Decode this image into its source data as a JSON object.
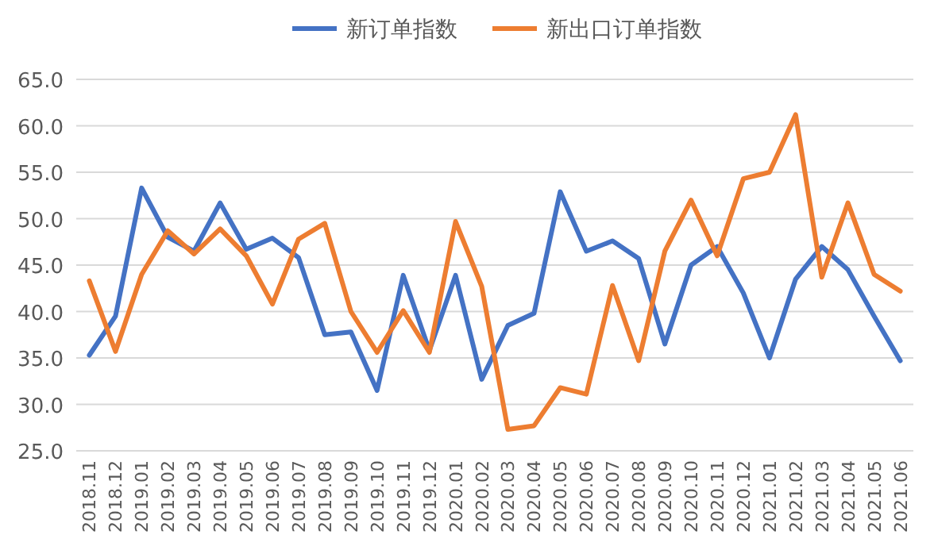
{
  "chart_data": {
    "type": "line",
    "categories": [
      "2018.11",
      "2018.12",
      "2019.01",
      "2019.02",
      "2019.03",
      "2019.04",
      "2019.05",
      "2019.06",
      "2019.07",
      "2019.08",
      "2019.09",
      "2019.10",
      "2019.11",
      "2019.12",
      "2020.01",
      "2020.02",
      "2020.03",
      "2020.04",
      "2020.05",
      "2020.06",
      "2020.07",
      "2020.08",
      "2020.09",
      "2020.10",
      "2020.11",
      "2020.12",
      "2021.01",
      "2021.02",
      "2021.03",
      "2021.04",
      "2021.05",
      "2021.06"
    ],
    "series": [
      {
        "name": "新订单指数",
        "color": "#4472c4",
        "values": [
          35.3,
          39.5,
          53.3,
          48,
          46.5,
          51.7,
          46.7,
          47.9,
          45.8,
          37.5,
          37.8,
          31.5,
          43.9,
          35.8,
          43.9,
          32.7,
          38.5,
          39.8,
          52.9,
          46.5,
          47.6,
          45.7,
          36.5,
          45,
          47,
          42,
          35,
          43.5,
          47,
          44.5,
          39.5,
          34.7
        ]
      },
      {
        "name": "新出口订单指数",
        "color": "#ed7d31",
        "values": [
          43.3,
          35.7,
          44,
          48.7,
          46.2,
          48.9,
          46,
          40.8,
          47.8,
          49.5,
          40,
          35.6,
          40.1,
          35.6,
          49.7,
          42.7,
          27.3,
          27.7,
          31.8,
          31.1,
          42.8,
          34.7,
          46.5,
          52,
          46,
          54.3,
          55,
          61.2,
          43.7,
          51.7,
          44,
          42.2
        ]
      }
    ],
    "ylim": [
      25,
      65
    ],
    "yticks": [
      {
        "value": 25,
        "label": "25.0"
      },
      {
        "value": 30,
        "label": "30.0"
      },
      {
        "value": 35,
        "label": "35.0"
      },
      {
        "value": 40,
        "label": "40.0"
      },
      {
        "value": 45,
        "label": "45.0"
      },
      {
        "value": 50,
        "label": "50.0"
      },
      {
        "value": 55,
        "label": "55.0"
      },
      {
        "value": 60,
        "label": "60.0"
      },
      {
        "value": 65,
        "label": "65.0"
      }
    ],
    "grid": "y",
    "legend": "top",
    "marker": "none",
    "line_style": "solid"
  }
}
